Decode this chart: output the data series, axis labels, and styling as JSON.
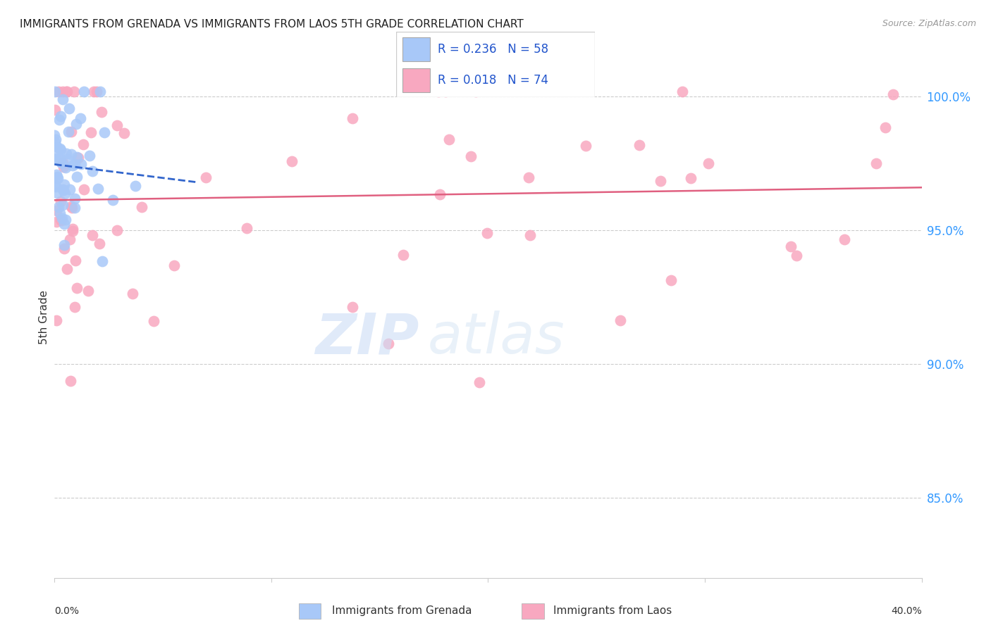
{
  "title": "IMMIGRANTS FROM GRENADA VS IMMIGRANTS FROM LAOS 5TH GRADE CORRELATION CHART",
  "source": "Source: ZipAtlas.com",
  "ylabel": "5th Grade",
  "ytick_values": [
    0.85,
    0.9,
    0.95,
    1.0
  ],
  "color_grenada": "#a8c8f8",
  "color_laos": "#f8a8c0",
  "color_grenada_line": "#3366cc",
  "color_laos_line": "#e06080",
  "color_legend_text": "#2255cc",
  "background_color": "#ffffff",
  "grenada_R": 0.236,
  "grenada_N": 58,
  "laos_R": 0.018,
  "laos_N": 74,
  "xlim": [
    0.0,
    0.4
  ],
  "ylim": [
    0.82,
    1.015
  ]
}
